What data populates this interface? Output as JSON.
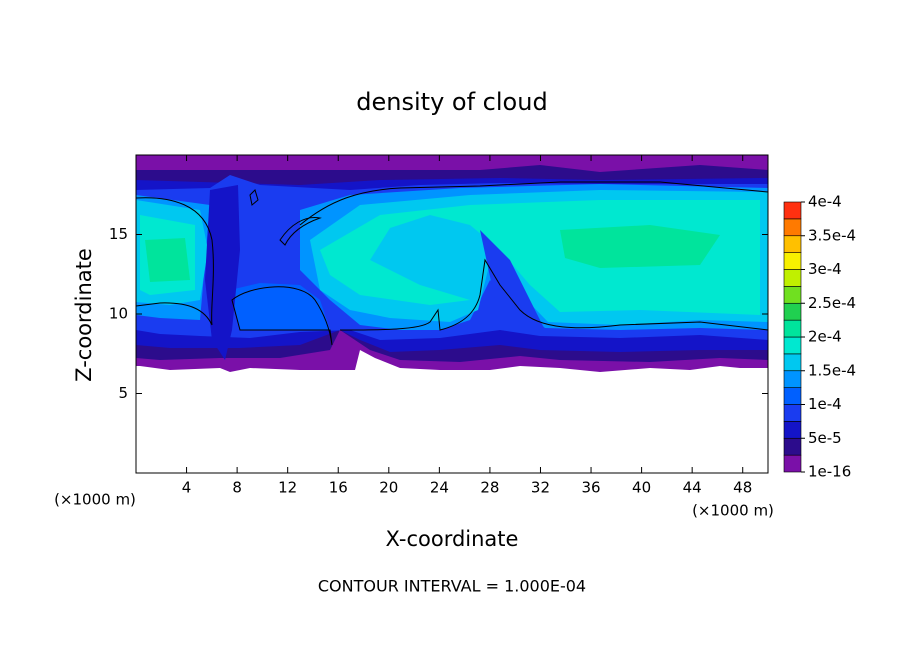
{
  "chart_data": {
    "type": "contour",
    "title": "density of cloud",
    "xlabel": "X-coordinate",
    "ylabel": "Z-coordinate",
    "x_unit": "(×1000 m)",
    "annotation": "CONTOUR INTERVAL = 1.000E-04",
    "xlim": [
      0,
      50
    ],
    "ylim": [
      0,
      20
    ],
    "xticks": [
      4,
      8,
      12,
      16,
      20,
      24,
      28,
      32,
      36,
      40,
      44,
      48
    ],
    "yticks": [
      5,
      10,
      15
    ],
    "colorbar": {
      "lim": [
        0,
        0.0004
      ],
      "ticks": [
        {
          "value": 1e-16,
          "label": "1e-16"
        },
        {
          "value": 5e-05,
          "label": "5e-5"
        },
        {
          "value": 0.0001,
          "label": "1e-4"
        },
        {
          "value": 0.00015,
          "label": "1.5e-4"
        },
        {
          "value": 0.0002,
          "label": "2e-4"
        },
        {
          "value": 0.00025,
          "label": "2.5e-4"
        },
        {
          "value": 0.0003,
          "label": "3e-4"
        },
        {
          "value": 0.00035,
          "label": "3.5e-4"
        },
        {
          "value": 0.0004,
          "label": "4e-4"
        }
      ],
      "colors": [
        "#7a10a8",
        "#2c0c8c",
        "#1414c8",
        "#1a3cf0",
        "#0060ff",
        "#0094ff",
        "#00c8f0",
        "#00e8d0",
        "#00e49c",
        "#20d050",
        "#70e020",
        "#c0f000",
        "#f8f000",
        "#ffc000",
        "#ff7a00",
        "#ff3010"
      ]
    }
  }
}
